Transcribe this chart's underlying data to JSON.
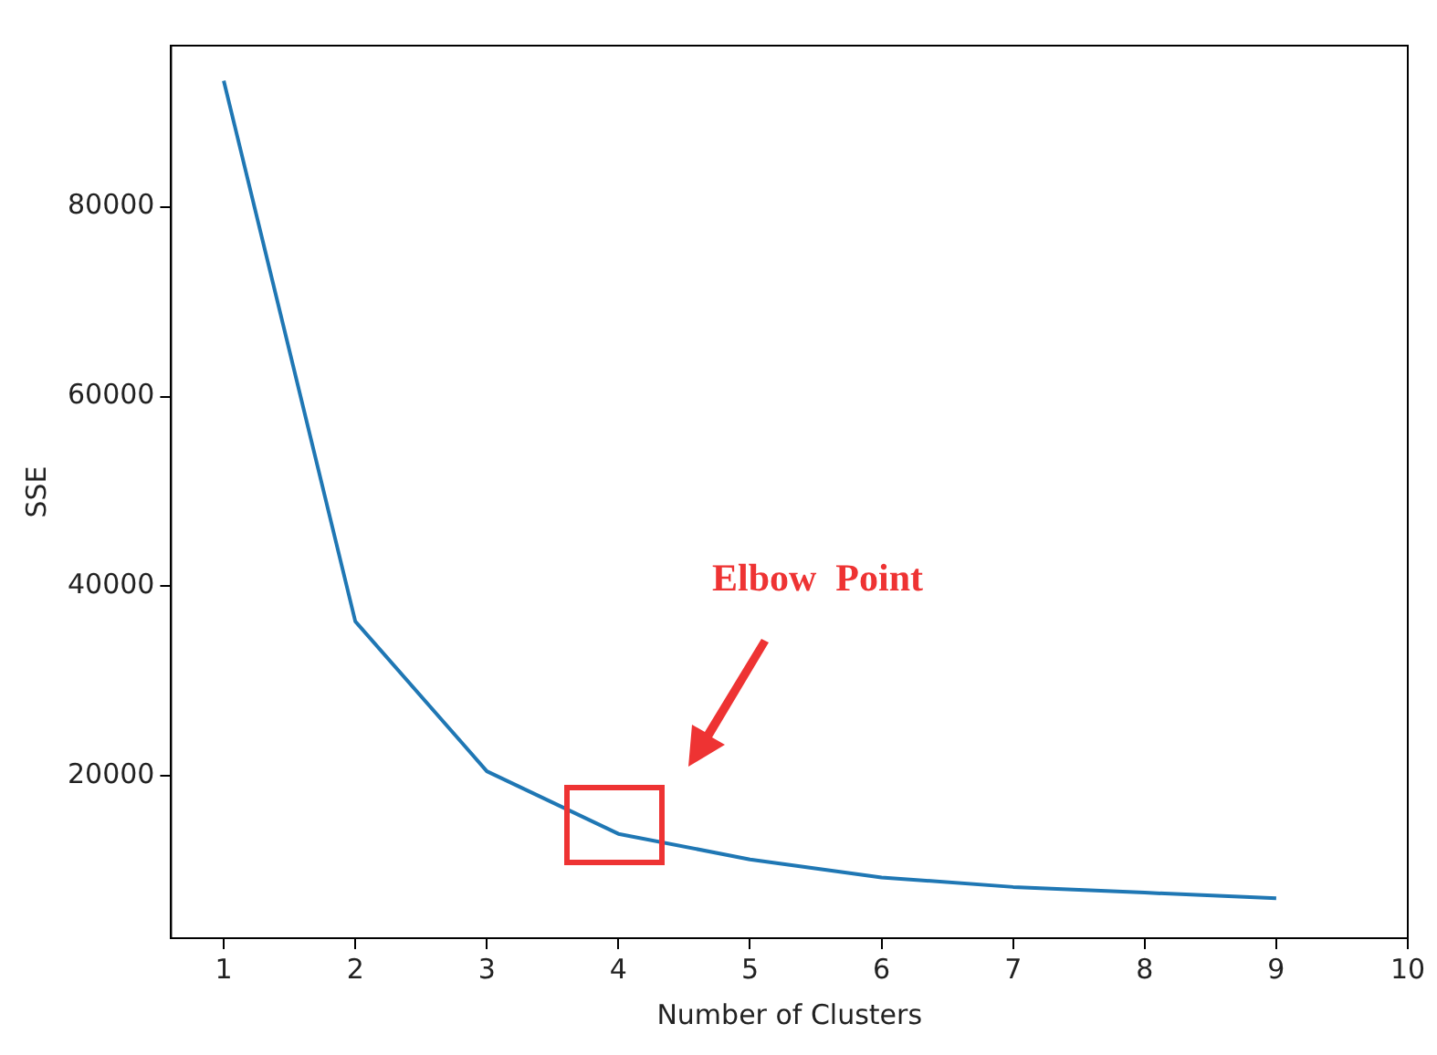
{
  "chart_data": {
    "type": "line",
    "xlabel": "Number of Clusters",
    "ylabel": "SSE",
    "x": [
      1,
      2,
      3,
      4,
      5,
      6,
      7,
      8,
      9
    ],
    "series": [
      {
        "color": "#1f77b4",
        "values": [
          93300,
          36300,
          20500,
          13900,
          11200,
          9300,
          8300,
          7700,
          7100
        ]
      }
    ],
    "xlim": [
      0.6,
      10
    ],
    "xticks": [
      1,
      2,
      3,
      4,
      5,
      6,
      7,
      8,
      9,
      10
    ],
    "ylim": [
      2900,
      97000
    ],
    "yticks": [
      20000,
      40000,
      60000,
      80000
    ],
    "marker": "none",
    "legend": false,
    "annotations": [
      "Elbow  Point"
    ]
  }
}
